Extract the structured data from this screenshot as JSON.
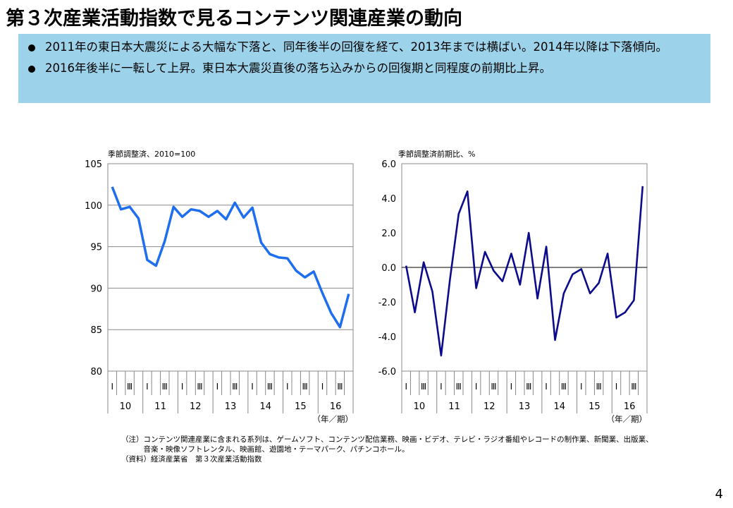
{
  "slide": {
    "title": "第３次産業活動指数で見るコンテンツ関連産業の動向",
    "bullets": [
      "2011年の東日本大震災による大幅な下落と、同年後半の回復を経て、2013年までは横ばい。2014年以降は下落傾向。",
      "2016年後半に一転して上昇。東日本大震災直後の落ち込みからの回復期と同程度の前期比上昇。"
    ],
    "notes": [
      "（注）コンテンツ関連産業に含まれる系列は、ゲームソフト、コンテンツ配信業務、映画・ビデオ、テレビ・ラジオ番組やレコードの制作業、新聞業、出版業、",
      "　　　音楽・映像ソフトレンタル、映画館、遊園地・テーマパーク、パチンコホール。",
      "（資料）経済産業省　第３次産業活動指数"
    ],
    "page_number": "4"
  },
  "chart_data": [
    {
      "type": "line",
      "ylabel": "季節調整済、2010=100",
      "xlabel": "（年／期）",
      "ylim": [
        80,
        105
      ],
      "yticks": [
        "80",
        "85",
        "90",
        "95",
        "100",
        "105"
      ],
      "grid": true,
      "color": "#1e6ef0",
      "quarter_labels": [
        "Ⅰ",
        "",
        "Ⅲ",
        ""
      ],
      "years": [
        "10",
        "11",
        "12",
        "13",
        "14",
        "15",
        "16"
      ],
      "series": [
        {
          "values": [
            102.2,
            99.5,
            99.8,
            98.4,
            93.4,
            92.7,
            95.7,
            99.8,
            98.6,
            99.5,
            99.3,
            98.6,
            99.3,
            98.3,
            100.3,
            98.5,
            99.7,
            95.5,
            94.1,
            93.7,
            93.6,
            92.1,
            91.3,
            92.0,
            89.4,
            87.0,
            85.3,
            89.3
          ]
        }
      ]
    },
    {
      "type": "line",
      "ylabel": "季節調整済前期比、%",
      "xlabel": "（年／期）",
      "ylim": [
        -6,
        6
      ],
      "yticks": [
        "-6.0",
        "-4.0",
        "-2.0",
        "0.0",
        "2.0",
        "4.0",
        "6.0"
      ],
      "grid": false,
      "color": "#0b0b8c",
      "quarter_labels": [
        "Ⅰ",
        "",
        "Ⅲ",
        ""
      ],
      "years": [
        "10",
        "11",
        "12",
        "13",
        "14",
        "15",
        "16"
      ],
      "series": [
        {
          "values": [
            0.1,
            -2.6,
            0.3,
            -1.4,
            -5.1,
            -0.7,
            3.1,
            4.4,
            -1.2,
            0.9,
            -0.2,
            -0.8,
            0.8,
            -1.0,
            2.0,
            -1.8,
            1.2,
            -4.2,
            -1.5,
            -0.4,
            -0.1,
            -1.5,
            -0.9,
            0.8,
            -2.9,
            -2.6,
            -1.9,
            4.7
          ]
        }
      ]
    }
  ]
}
